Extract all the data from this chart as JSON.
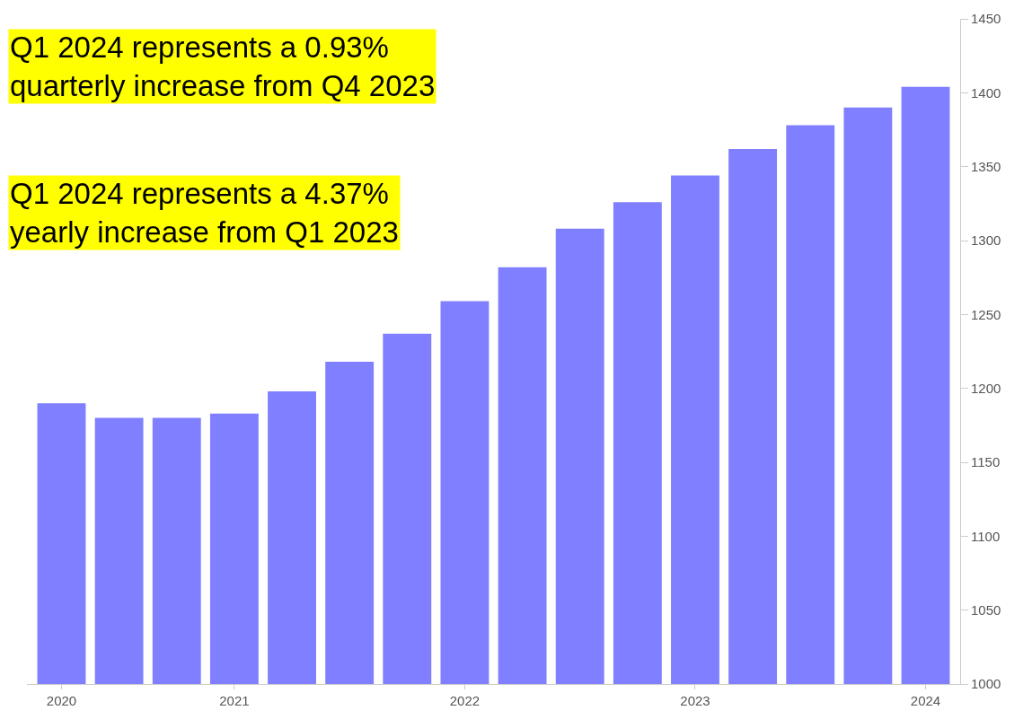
{
  "chart_data": {
    "type": "bar",
    "categories": [
      "2020",
      null,
      null,
      "2021",
      null,
      null,
      null,
      "2022",
      null,
      null,
      null,
      "2023",
      null,
      null,
      null,
      "2024"
    ],
    "values": [
      1190,
      1180,
      1180,
      1183,
      1198,
      1218,
      1237,
      1259,
      1282,
      1308,
      1326,
      1344,
      1362,
      1378,
      1390,
      1404
    ],
    "color": "#7f7fff",
    "ylim": [
      1000,
      1450
    ],
    "yticks": [
      1000,
      1050,
      1100,
      1150,
      1200,
      1250,
      1300,
      1350,
      1400,
      1450
    ],
    "annotations": [
      "Q1 2024 represents a 0.93%\nquarterly increase from Q4 2023",
      "Q1 2024 represents a 4.37%\nyearly increase from Q1 2023"
    ]
  }
}
